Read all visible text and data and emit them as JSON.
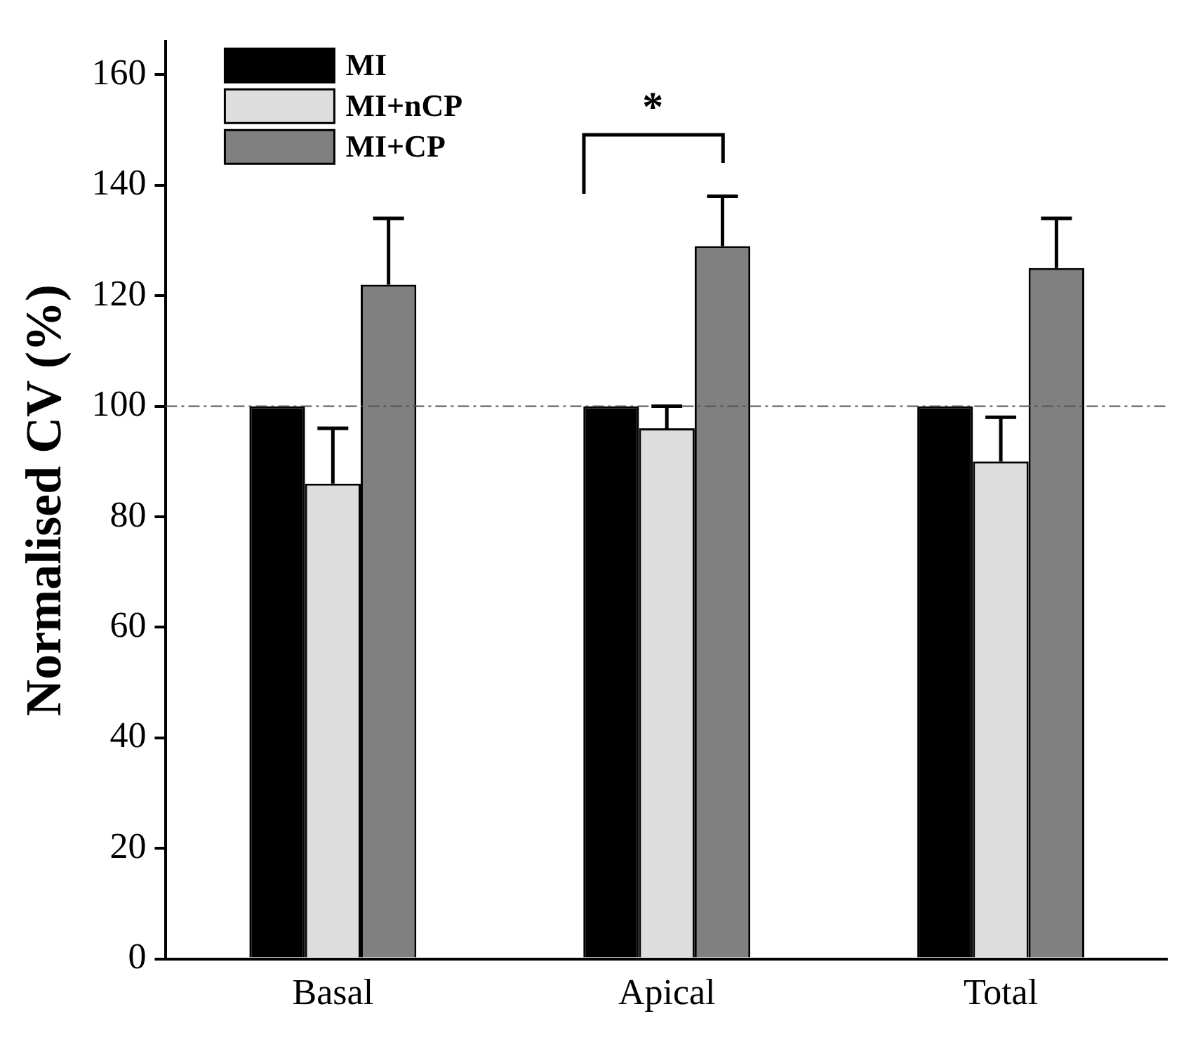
{
  "chart_data": {
    "type": "bar",
    "ylabel": "Normalised CV (%)",
    "categories": [
      "Basal",
      "Apical",
      "Total"
    ],
    "series": [
      {
        "name": "MI",
        "color": "#000000",
        "values": [
          100,
          100,
          100
        ]
      },
      {
        "name": "MI+nCP",
        "color": "#dddddd",
        "values": [
          86,
          96,
          90
        ],
        "errors": [
          10,
          4,
          8
        ]
      },
      {
        "name": "MI+CP",
        "color": "#808080",
        "values": [
          122,
          129,
          125
        ],
        "errors": [
          12,
          9,
          9
        ]
      }
    ],
    "ylim": [
      0,
      166
    ],
    "yticks": [
      0,
      20,
      40,
      60,
      80,
      100,
      120,
      140,
      160
    ],
    "grid": false,
    "legend": "top left",
    "ref_lines": [
      {
        "axis": "y",
        "value": 100,
        "line_style": "dashdot",
        "color": "#555555"
      }
    ],
    "annotations": [
      "*"
    ]
  }
}
